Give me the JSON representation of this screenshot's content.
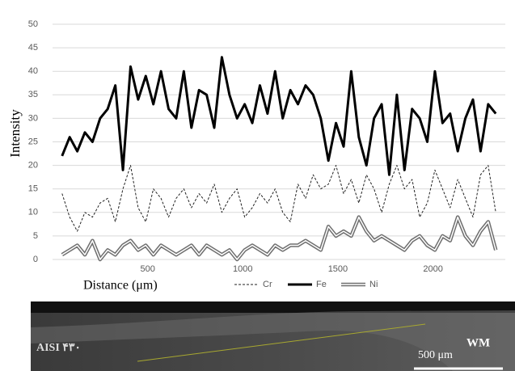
{
  "chart_data": {
    "type": "line",
    "x_label": "Distance (μm)",
    "y_label": "Intensity",
    "x": [
      50,
      90,
      130,
      170,
      210,
      250,
      290,
      330,
      370,
      410,
      450,
      490,
      530,
      570,
      610,
      650,
      690,
      730,
      770,
      810,
      850,
      890,
      930,
      970,
      1010,
      1050,
      1090,
      1130,
      1170,
      1210,
      1250,
      1290,
      1330,
      1370,
      1410,
      1450,
      1490,
      1530,
      1570,
      1610,
      1650,
      1690,
      1730,
      1770,
      1810,
      1850,
      1890,
      1930,
      1970,
      2010,
      2050,
      2090,
      2130,
      2170,
      2210,
      2250,
      2290,
      2330
    ],
    "series": [
      {
        "name": "Cr",
        "color": "#222222",
        "line_style": "dashed",
        "values": [
          14,
          9,
          6,
          10,
          9,
          12,
          13,
          8,
          15,
          20,
          11,
          8,
          15,
          13,
          9,
          13,
          15,
          11,
          14,
          12,
          16,
          10,
          13,
          15,
          9,
          11,
          14,
          12,
          15,
          10,
          8,
          16,
          13,
          18,
          15,
          16,
          20,
          14,
          17,
          12,
          18,
          15,
          10,
          16,
          20,
          15,
          17,
          9,
          12,
          19,
          15,
          11,
          17,
          13,
          9,
          18,
          20,
          10
        ]
      },
      {
        "name": "Fe",
        "color": "#000000",
        "line_style": "solid",
        "values": [
          22,
          26,
          23,
          27,
          25,
          30,
          32,
          37,
          19,
          41,
          34,
          39,
          33,
          40,
          32,
          30,
          40,
          28,
          36,
          35,
          28,
          43,
          35,
          30,
          33,
          29,
          37,
          31,
          40,
          30,
          36,
          33,
          37,
          35,
          30,
          21,
          29,
          24,
          40,
          26,
          20,
          30,
          33,
          18,
          35,
          19,
          32,
          30,
          25,
          40,
          29,
          31,
          23,
          30,
          34,
          23,
          33,
          31
        ]
      },
      {
        "name": "Ni",
        "color": "#6f6f6f",
        "line_style": "double",
        "values": [
          1,
          2,
          3,
          1,
          4,
          0,
          2,
          1,
          3,
          4,
          2,
          3,
          1,
          3,
          2,
          1,
          2,
          3,
          1,
          3,
          2,
          1,
          2,
          0,
          2,
          3,
          2,
          1,
          3,
          2,
          3,
          3,
          4,
          3,
          2,
          7,
          5,
          6,
          5,
          9,
          6,
          4,
          5,
          4,
          3,
          2,
          4,
          5,
          3,
          2,
          5,
          4,
          9,
          5,
          3,
          6,
          8,
          2
        ]
      }
    ],
    "xlim": [
      0,
      2380
    ],
    "xticks": [
      500,
      1000,
      1500,
      2000
    ],
    "ylim": [
      0,
      50
    ],
    "yticks": [
      0,
      5,
      10,
      15,
      20,
      25,
      30,
      35,
      40,
      45,
      50
    ],
    "grid": true,
    "legend": "bottom"
  },
  "micrograph": {
    "left_label": "AISI ۴۳۰",
    "right_label": "WM",
    "scale_label": "500 μm"
  }
}
